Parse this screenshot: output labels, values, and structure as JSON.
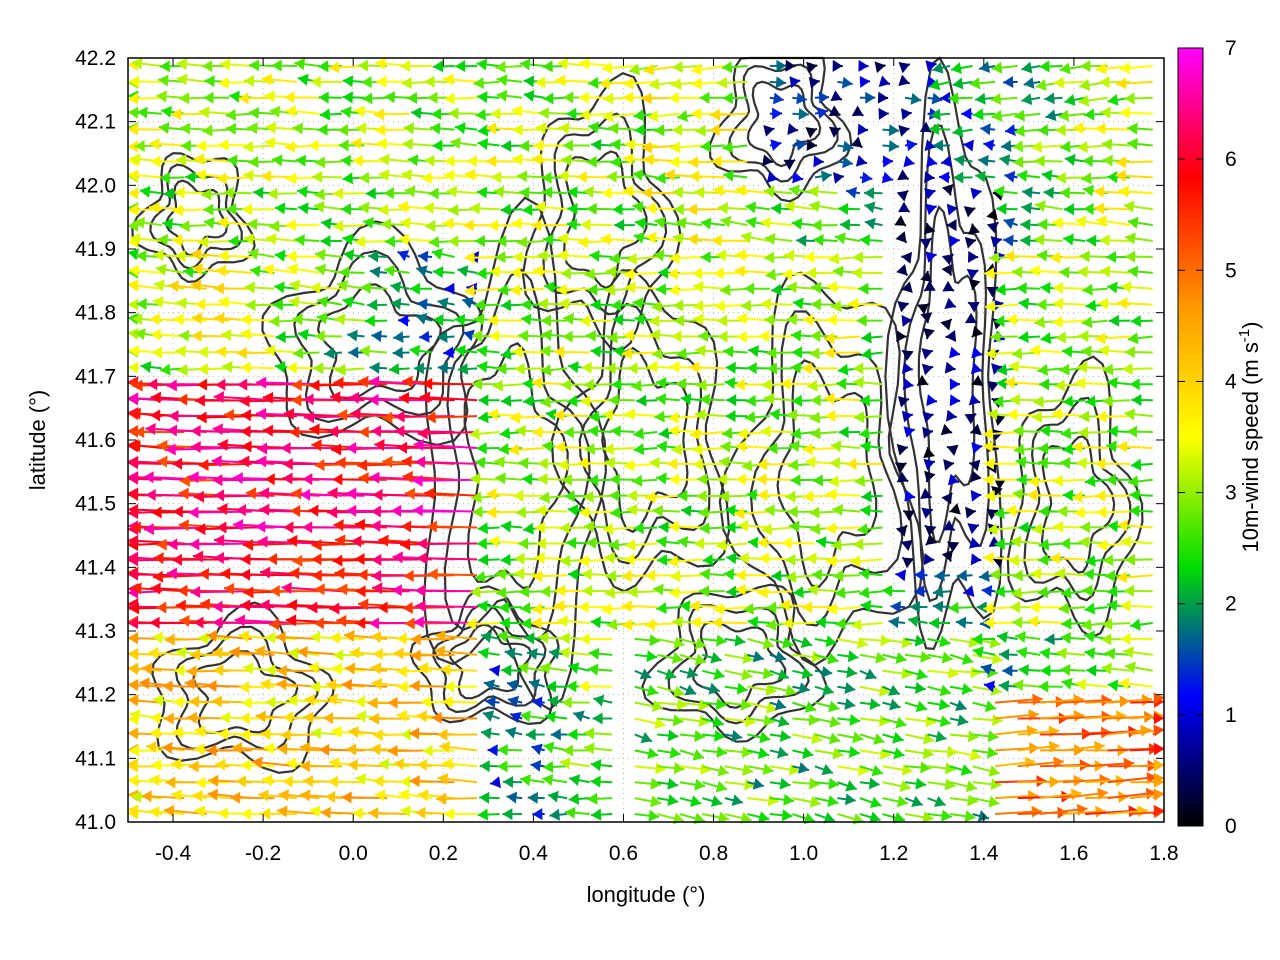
{
  "chart_data": {
    "type": "vector-field",
    "xlabel": "longitude (°)",
    "ylabel": "latitude (°)",
    "xlim": [
      -0.5,
      1.8
    ],
    "ylim": [
      41.0,
      42.2
    ],
    "xticks": [
      -0.4,
      -0.2,
      0.0,
      0.2,
      0.4,
      0.6,
      0.8,
      1.0,
      1.2,
      1.4,
      1.6,
      1.8
    ],
    "xtick_labels": [
      "-0.4",
      "-0.2",
      "0.0",
      "0.2",
      "0.4",
      "0.6",
      "0.8",
      "1.0",
      "1.2",
      "1.4",
      "1.6",
      "1.8"
    ],
    "yticks": [
      41.0,
      41.1,
      41.2,
      41.3,
      41.4,
      41.5,
      41.6,
      41.7,
      41.8,
      41.9,
      42.0,
      42.1,
      42.2
    ],
    "ytick_labels": [
      "41.0",
      "41.1",
      "41.2",
      "41.3",
      "41.4",
      "41.5",
      "41.6",
      "41.7",
      "41.8",
      "41.9",
      "42.0",
      "42.1",
      "42.2"
    ],
    "grid": true,
    "colorbar": {
      "label": "10m-wind speed (m s",
      "label_sup": "-1",
      "label_end": ")",
      "range": [
        0,
        7
      ],
      "ticks": [
        0,
        1,
        2,
        3,
        4,
        5,
        6,
        7
      ],
      "tick_labels": [
        "0",
        "1",
        "2",
        "3",
        "4",
        "5",
        "6",
        "7"
      ],
      "colors": [
        "#000000",
        "#0000ff",
        "#00dd00",
        "#ffff00",
        "#ff9900",
        "#ff0000",
        "#ff00ff"
      ]
    },
    "contour_color": "#333333",
    "wind_field": {
      "description_regions": [
        {
          "lon": [
            -0.5,
            0.3
          ],
          "lat": [
            41.3,
            41.7
          ],
          "u": -6.0,
          "v": 0.1
        },
        {
          "lon": [
            0.3,
            1.2
          ],
          "lat": [
            41.3,
            41.9
          ],
          "u": -3.0,
          "v": 0.0
        },
        {
          "lon": [
            1.2,
            1.45
          ],
          "lat": [
            41.4,
            42.0
          ],
          "u": 0.3,
          "v": 0.0
        },
        {
          "lon": [
            1.45,
            1.8
          ],
          "lat": [
            41.3,
            41.9
          ],
          "u": -3.0,
          "v": 0.0
        },
        {
          "lon": [
            -0.5,
            0.3
          ],
          "lat": [
            41.0,
            41.3
          ],
          "u": -4.0,
          "v": 0.2
        },
        {
          "lon": [
            0.6,
            1.4
          ],
          "lat": [
            41.0,
            41.3
          ],
          "u": 2.5,
          "v": -0.5
        },
        {
          "lon": [
            1.4,
            1.8
          ],
          "lat": [
            41.0,
            41.2
          ],
          "u": 5.0,
          "v": 0.3
        },
        {
          "lon": [
            -0.5,
            0.6
          ],
          "lat": [
            41.9,
            42.2
          ],
          "u": -3.0,
          "v": 0.1
        },
        {
          "lon": [
            0.9,
            1.3
          ],
          "lat": [
            42.0,
            42.2
          ],
          "u": 1.0,
          "v": 0.0
        }
      ]
    }
  }
}
